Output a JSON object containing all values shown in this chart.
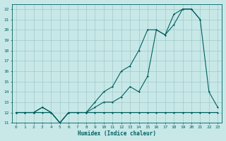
{
  "title": "",
  "xlabel": "Humidex (Indice chaleur)",
  "xlim": [
    -0.5,
    23.5
  ],
  "ylim": [
    11,
    22.5
  ],
  "yticks": [
    11,
    12,
    13,
    14,
    15,
    16,
    17,
    18,
    19,
    20,
    21,
    22
  ],
  "xticks": [
    0,
    1,
    2,
    3,
    4,
    5,
    6,
    7,
    8,
    9,
    10,
    11,
    12,
    13,
    14,
    15,
    16,
    17,
    18,
    19,
    20,
    21,
    22,
    23
  ],
  "bg_color": "#c8e8e8",
  "grid_color": "#a0c8c8",
  "line_color": "#006060",
  "line1_x": [
    0,
    1,
    2,
    3,
    4,
    5,
    6,
    7,
    8,
    9,
    10,
    11,
    12,
    13,
    14,
    15,
    16,
    17,
    18,
    19,
    20,
    21,
    22,
    23
  ],
  "line1_y": [
    12,
    12,
    12,
    12,
    12,
    11,
    12,
    12,
    12,
    12,
    12,
    12,
    12,
    12,
    12,
    12,
    12,
    12,
    12,
    12,
    12,
    12,
    12,
    12
  ],
  "line2_x": [
    0,
    1,
    2,
    3,
    4,
    5,
    6,
    7,
    8,
    9,
    10,
    11,
    12,
    13,
    14,
    15,
    16,
    17,
    18,
    19,
    20,
    21
  ],
  "line2_y": [
    12,
    12,
    12,
    12.5,
    12,
    11,
    12,
    12,
    12,
    12.5,
    13,
    13,
    13.5,
    14.5,
    14,
    15.5,
    20,
    19.5,
    21.5,
    22,
    22,
    21
  ],
  "line3_x": [
    0,
    1,
    2,
    3,
    4,
    5,
    6,
    7,
    8,
    9,
    10,
    11,
    12,
    13,
    14,
    15,
    16,
    17,
    18,
    19,
    20,
    21,
    22,
    23
  ],
  "line3_y": [
    12,
    12,
    12,
    12.5,
    12,
    11,
    12,
    12,
    12,
    13,
    14,
    14.5,
    16,
    16.5,
    18,
    20,
    20,
    19.5,
    20.5,
    22,
    22,
    21,
    14,
    12.5
  ]
}
